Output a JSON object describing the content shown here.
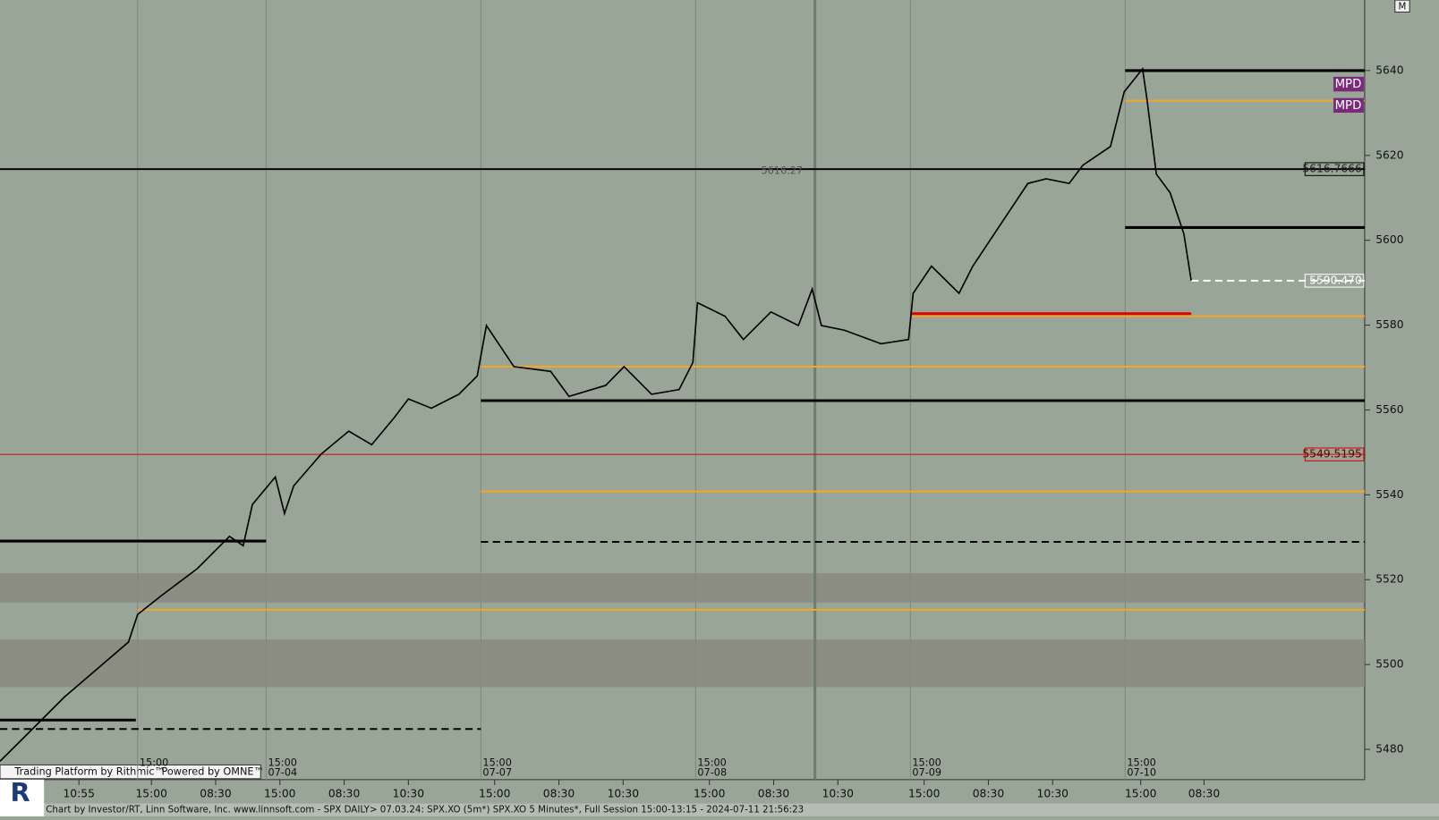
{
  "chart_data": {
    "type": "line",
    "footer": "Chart by Investor/RT, Linn Software, Inc. www.linnsoft.com - SPX DAILY>  07.03.24: SPX.XO (5m*) SPX.XO 5 Minutes*, Full Session 15:00-13:15 - 2024-07-11 21:56:23",
    "branding": [
      "Trading Platform by Rithmic™",
      "Powered by OMNE™"
    ],
    "corner_label": "M",
    "color": "#000000",
    "x": [
      0,
      20,
      35,
      70,
      75,
      87.5,
      107.5,
      125,
      132.5,
      137.5,
      150,
      155,
      160,
      175,
      190,
      202.5,
      215,
      222.5,
      235,
      250,
      260,
      265,
      280,
      300,
      310,
      330,
      340,
      355,
      370,
      377.5,
      380,
      395,
      405,
      420,
      435,
      442.5,
      447.5,
      460,
      480,
      495,
      497.5,
      507.5,
      522.5,
      530,
      550,
      560,
      570,
      582.5,
      590,
      605,
      612.5,
      622.5,
      625,
      630,
      637.5,
      645,
      649
    ],
    "values": [
      5477.2,
      5485.8,
      5492.3,
      5505.3,
      5511.8,
      5516.1,
      5522.6,
      5530.2,
      5528.0,
      5537.7,
      5544.2,
      5535.6,
      5542.1,
      5549.6,
      5555.0,
      5551.8,
      5558.3,
      5562.6,
      5560.4,
      5563.7,
      5568.0,
      5579.9,
      5570.2,
      5569.1,
      5563.2,
      5565.8,
      5570.2,
      5563.7,
      5564.8,
      5571.2,
      5585.3,
      5582.1,
      5576.6,
      5583.1,
      5579.9,
      5588.5,
      5579.9,
      5578.8,
      5575.6,
      5576.6,
      5587.5,
      5593.9,
      5587.5,
      5593.9,
      5606.9,
      5613.4,
      5614.5,
      5613.4,
      5617.7,
      5622.1,
      5635.0,
      5640.4,
      5632.9,
      5615.6,
      5611.2,
      5601.5,
      5590.5
    ],
    "xlim": [
      0,
      743.5
    ],
    "xticks": [
      {
        "value": 43,
        "label": "10:55"
      },
      {
        "value": 82.5,
        "label": "15:00"
      },
      {
        "value": 117.5,
        "label": "08:30"
      },
      {
        "value": 152.5,
        "label": "15:00"
      },
      {
        "value": 187.5,
        "label": "08:30"
      },
      {
        "value": 222.5,
        "label": "10:30"
      },
      {
        "value": 269.5,
        "label": "15:00"
      },
      {
        "value": 304.5,
        "label": "08:30"
      },
      {
        "value": 339.5,
        "label": "10:30"
      },
      {
        "value": 386.5,
        "label": "15:00"
      },
      {
        "value": 421.5,
        "label": "08:30"
      },
      {
        "value": 456.5,
        "label": "10:30"
      },
      {
        "value": 503.5,
        "label": "15:00"
      },
      {
        "value": 538.5,
        "label": "08:30"
      },
      {
        "value": 573.5,
        "label": "10:30"
      },
      {
        "value": 621.5,
        "label": "15:00"
      },
      {
        "value": 656,
        "label": "08:30"
      }
    ],
    "ylim": [
      5473.3,
      5656.6
    ],
    "yticks": [
      5480,
      5500,
      5520,
      5540,
      5560,
      5580,
      5600,
      5620,
      5640
    ],
    "sessions": [
      {
        "x": 75,
        "time": "15:00"
      },
      {
        "x": 145,
        "time": "15:00",
        "date": "07-04"
      },
      {
        "x": 262,
        "time": "15:00",
        "date": "07-07"
      },
      {
        "x": 379,
        "time": "15:00",
        "date": "07-08"
      },
      {
        "x": 496,
        "time": "15:00",
        "date": "07-09"
      },
      {
        "x": 613,
        "time": "15:00",
        "date": "07-10"
      }
    ],
    "cursor_x": 444,
    "zones": [
      [
        5521.5,
        5514.6
      ],
      [
        5505.9,
        5494.7
      ]
    ],
    "levels": [
      {
        "value": 5616.77,
        "color": "#000000",
        "x": [
          0,
          743.5
        ],
        "style": "solid"
      },
      {
        "value": 5549.5195,
        "color": "#e00000",
        "x": [
          0,
          743.5
        ],
        "style": "thin"
      },
      {
        "value": 5590.47,
        "color": "#ffffff",
        "x": [
          649,
          743.5
        ],
        "style": "dashed"
      },
      {
        "value": 5570.2,
        "color": "#f5a623",
        "x": [
          262,
          743.5
        ],
        "style": "solid"
      },
      {
        "value": 5562.2,
        "color": "#000000",
        "x": [
          262,
          743.5
        ],
        "style": "thick"
      },
      {
        "value": 5540.8,
        "color": "#f5a623",
        "x": [
          262,
          743.5
        ],
        "style": "solid"
      },
      {
        "value": 5528.9,
        "color": "#000000",
        "x": [
          262,
          743.5
        ],
        "style": "dashed"
      },
      {
        "value": 5512.9,
        "color": "#f5a623",
        "x": [
          75,
          743.5
        ],
        "style": "solid"
      },
      {
        "value": 5632.9,
        "color": "#f5a623",
        "x": [
          613,
          743.5
        ],
        "style": "solid"
      },
      {
        "value": 5640.0,
        "color": "#000000",
        "x": [
          613,
          743.5
        ],
        "style": "thick"
      },
      {
        "value": 5603.0,
        "color": "#000000",
        "x": [
          613,
          743.5
        ],
        "style": "thick"
      },
      {
        "value": 5582.7,
        "color": "#e00000",
        "x": [
          496,
          649
        ],
        "style": "thick"
      },
      {
        "value": 5582.1,
        "color": "#f5a623",
        "x": [
          496,
          743.5
        ],
        "style": "solid"
      },
      {
        "value": 5529.1,
        "color": "#000000",
        "x": [
          0,
          145
        ],
        "style": "thick"
      },
      {
        "value": 5486.9,
        "color": "#000000",
        "x": [
          0,
          74
        ],
        "style": "thick"
      },
      {
        "value": 5484.8,
        "color": "#000000",
        "x": [
          0,
          262
        ],
        "style": "dashed"
      }
    ],
    "price_labels": [
      {
        "value": 5616.7666,
        "label": "5616.7666",
        "color": "#000000"
      },
      {
        "value": 5549.5195,
        "label": "5549.5195",
        "color": "#e00000"
      },
      {
        "value": 5590.47,
        "label": "5590.470",
        "color": "#ffffff"
      }
    ],
    "annotations": [
      {
        "value": 5636.8,
        "label": "MPD"
      },
      {
        "value": 5631.8,
        "label": "MPD"
      }
    ],
    "mid_label": {
      "value": 5616.27,
      "label": "5616.27",
      "x": 426
    }
  }
}
